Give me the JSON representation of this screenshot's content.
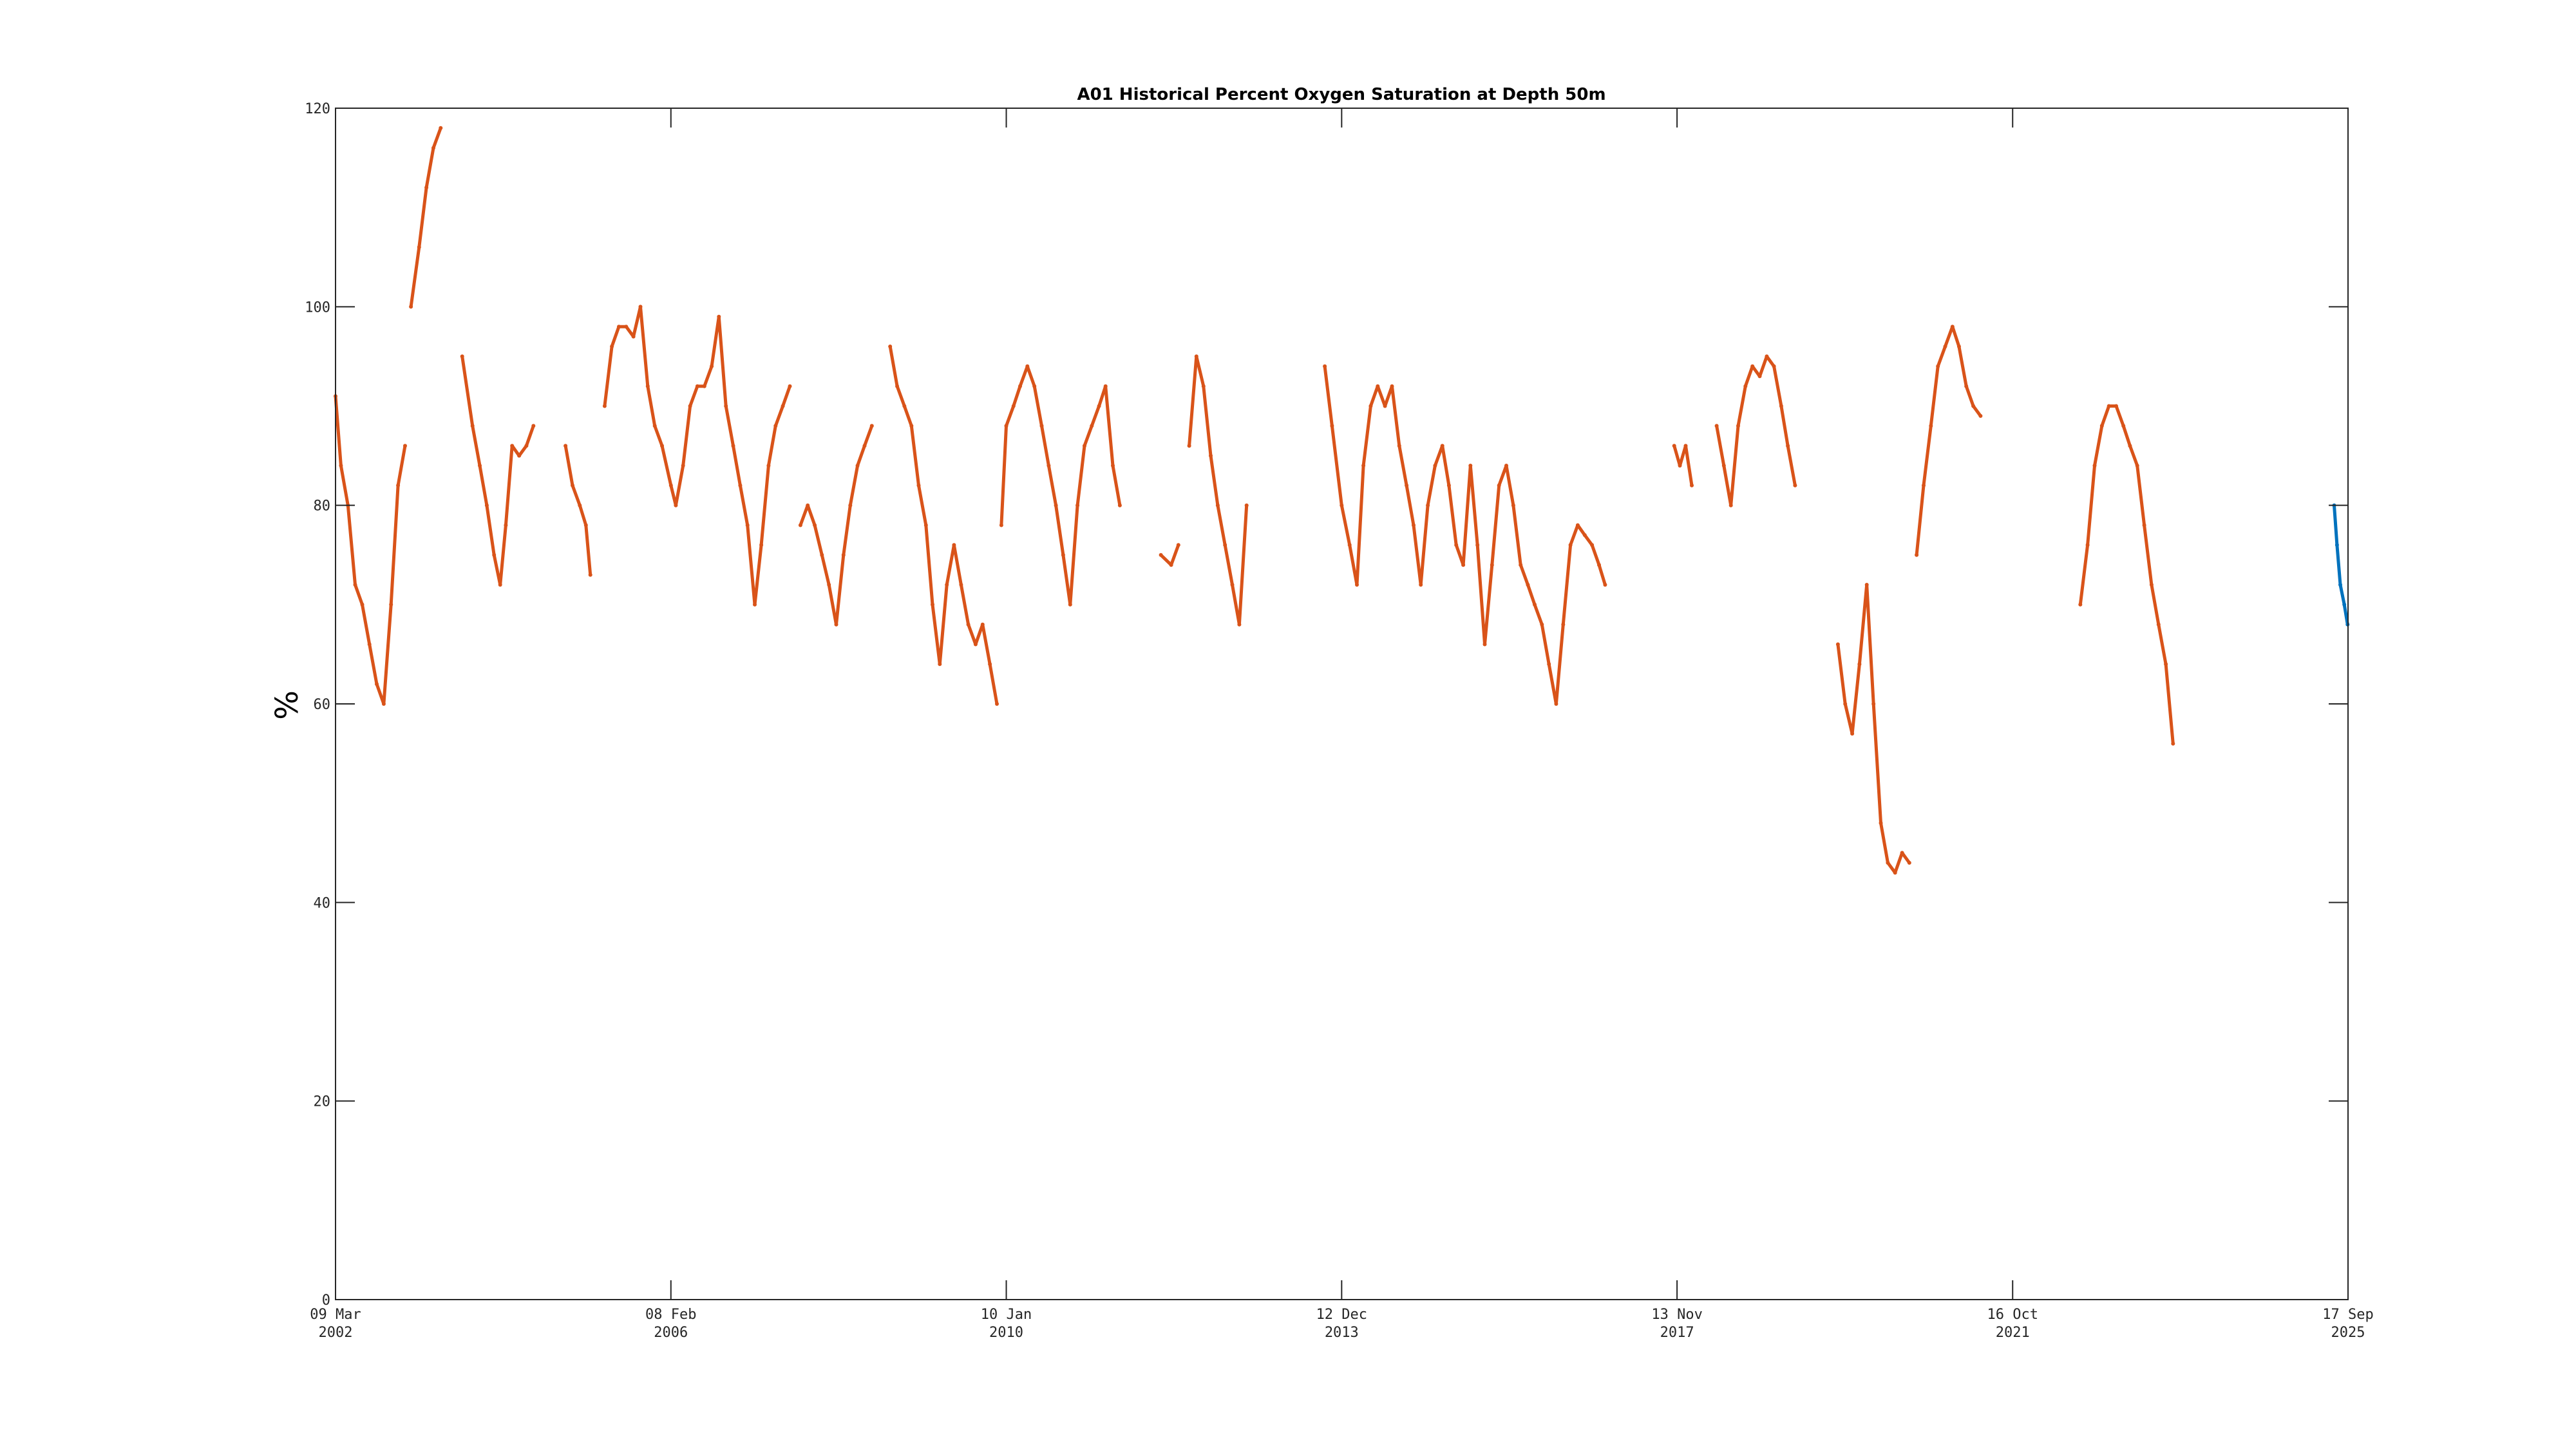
{
  "chart_data": {
    "type": "line",
    "title": "A01 Historical Percent Oxygen Saturation at Depth 50m",
    "xlabel": "",
    "ylabel": "%",
    "ylim": [
      0,
      120
    ],
    "xlim": [
      "2002-03-09",
      "2025-09-17"
    ],
    "yticks": [
      0,
      20,
      40,
      60,
      80,
      100,
      120
    ],
    "xticks": [
      {
        "date": "2002-03-09",
        "line1": "09 Mar",
        "line2": "2002"
      },
      {
        "date": "2006-02-08",
        "line1": "08 Feb",
        "line2": "2006"
      },
      {
        "date": "2010-01-10",
        "line1": "10 Jan",
        "line2": "2010"
      },
      {
        "date": "2013-12-12",
        "line1": "12 Dec",
        "line2": "2013"
      },
      {
        "date": "2017-11-13",
        "line1": "13 Nov",
        "line2": "2017"
      },
      {
        "date": "2021-10-16",
        "line1": "16 Oct",
        "line2": "2021"
      },
      {
        "date": "2025-09-17",
        "line1": "17 Sep",
        "line2": "2025"
      }
    ],
    "grid": false,
    "colors": {
      "historical": "#D95319",
      "recent": "#0072BD"
    },
    "series": [
      {
        "color": "historical",
        "segments": [
          [
            [
              "2002-03-09",
              91
            ],
            [
              "2002-04-01",
              84
            ],
            [
              "2002-05-01",
              80
            ],
            [
              "2002-06-01",
              72
            ],
            [
              "2002-07-01",
              70
            ],
            [
              "2002-08-01",
              66
            ],
            [
              "2002-09-01",
              62
            ],
            [
              "2002-10-01",
              60
            ],
            [
              "2002-11-01",
              70
            ],
            [
              "2002-12-01",
              82
            ],
            [
              "2002-12-31",
              86
            ]
          ],
          [
            [
              "2003-01-25",
              100
            ],
            [
              "2003-03-01",
              106
            ],
            [
              "2003-04-01",
              112
            ],
            [
              "2003-05-01",
              116
            ],
            [
              "2003-06-01",
              118
            ]
          ],
          [
            [
              "2003-09-01",
              95
            ],
            [
              "2003-10-15",
              88
            ],
            [
              "2003-11-15",
              84
            ],
            [
              "2003-12-15",
              80
            ],
            [
              "2004-01-15",
              75
            ],
            [
              "2004-02-10",
              72
            ],
            [
              "2004-03-05",
              78
            ],
            [
              "2004-04-01",
              86
            ],
            [
              "2004-05-01",
              85
            ],
            [
              "2004-06-01",
              86
            ],
            [
              "2004-07-01",
              88
            ]
          ],
          [
            [
              "2004-11-15",
              86
            ],
            [
              "2004-12-15",
              82
            ],
            [
              "2005-01-15",
              80
            ],
            [
              "2005-02-10",
              78
            ],
            [
              "2005-03-01",
              73
            ]
          ],
          [
            [
              "2005-05-01",
              90
            ],
            [
              "2005-06-01",
              96
            ],
            [
              "2005-07-01",
              98
            ],
            [
              "2005-08-01",
              98
            ],
            [
              "2005-09-01",
              97
            ],
            [
              "2005-10-01",
              100
            ],
            [
              "2005-11-01",
              92
            ],
            [
              "2005-12-01",
              88
            ],
            [
              "2006-01-01",
              86
            ],
            [
              "2006-02-08",
              82
            ],
            [
              "2006-03-01",
              80
            ],
            [
              "2006-04-01",
              84
            ],
            [
              "2006-05-01",
              90
            ],
            [
              "2006-06-01",
              92
            ],
            [
              "2006-07-01",
              92
            ],
            [
              "2006-08-01",
              94
            ],
            [
              "2006-09-01",
              99
            ],
            [
              "2006-10-01",
              90
            ],
            [
              "2006-11-01",
              86
            ],
            [
              "2006-12-01",
              82
            ],
            [
              "2007-01-01",
              78
            ],
            [
              "2007-02-01",
              70
            ],
            [
              "2007-03-01",
              76
            ],
            [
              "2007-04-01",
              84
            ],
            [
              "2007-05-01",
              88
            ],
            [
              "2007-06-01",
              90
            ],
            [
              "2007-07-01",
              92
            ]
          ],
          [
            [
              "2007-08-15",
              78
            ],
            [
              "2007-09-15",
              80
            ],
            [
              "2007-10-15",
              78
            ],
            [
              "2007-11-15",
              75
            ],
            [
              "2007-12-15",
              72
            ],
            [
              "2008-01-15",
              68
            ],
            [
              "2008-02-15",
              75
            ],
            [
              "2008-03-15",
              80
            ],
            [
              "2008-04-15",
              84
            ],
            [
              "2008-05-15",
              86
            ],
            [
              "2008-06-15",
              88
            ]
          ],
          [
            [
              "2008-09-01",
              96
            ],
            [
              "2008-10-01",
              92
            ],
            [
              "2008-11-01",
              90
            ],
            [
              "2008-12-01",
              88
            ],
            [
              "2009-01-01",
              82
            ],
            [
              "2009-02-01",
              78
            ],
            [
              "2009-03-01",
              70
            ],
            [
              "2009-04-01",
              64
            ],
            [
              "2009-05-01",
              72
            ],
            [
              "2009-06-01",
              76
            ],
            [
              "2009-07-01",
              72
            ],
            [
              "2009-08-01",
              68
            ],
            [
              "2009-09-01",
              66
            ],
            [
              "2009-10-01",
              68
            ],
            [
              "2009-11-01",
              64
            ],
            [
              "2009-12-01",
              60
            ]
          ],
          [
            [
              "2009-12-20",
              78
            ],
            [
              "2010-01-10",
              88
            ],
            [
              "2010-02-10",
              90
            ],
            [
              "2010-03-10",
              92
            ],
            [
              "2010-04-10",
              94
            ],
            [
              "2010-05-10",
              92
            ],
            [
              "2010-06-10",
              88
            ],
            [
              "2010-07-10",
              84
            ],
            [
              "2010-08-10",
              80
            ],
            [
              "2010-09-10",
              75
            ],
            [
              "2010-10-10",
              70
            ],
            [
              "2010-11-10",
              80
            ],
            [
              "2010-12-10",
              86
            ],
            [
              "2011-01-10",
              88
            ],
            [
              "2011-02-10",
              90
            ],
            [
              "2011-03-10",
              92
            ],
            [
              "2011-04-10",
              84
            ],
            [
              "2011-05-10",
              80
            ]
          ],
          [
            [
              "2011-11-01",
              75
            ],
            [
              "2011-12-15",
              74
            ],
            [
              "2012-01-15",
              76
            ]
          ],
          [
            [
              "2012-03-01",
              86
            ],
            [
              "2012-04-01",
              95
            ],
            [
              "2012-05-01",
              92
            ],
            [
              "2012-06-01",
              85
            ],
            [
              "2012-07-01",
              80
            ],
            [
              "2012-08-01",
              76
            ],
            [
              "2012-09-01",
              72
            ],
            [
              "2012-10-01",
              68
            ],
            [
              "2012-11-01",
              80
            ]
          ],
          [
            [
              "2013-10-01",
              94
            ],
            [
              "2013-11-01",
              88
            ],
            [
              "2013-12-12",
              80
            ],
            [
              "2014-01-15",
              76
            ],
            [
              "2014-02-15",
              72
            ],
            [
              "2014-03-15",
              84
            ],
            [
              "2014-04-15",
              90
            ],
            [
              "2014-05-15",
              92
            ],
            [
              "2014-06-15",
              90
            ],
            [
              "2014-07-15",
              92
            ],
            [
              "2014-08-15",
              86
            ],
            [
              "2014-09-15",
              82
            ],
            [
              "2014-10-15",
              78
            ],
            [
              "2014-11-15",
              72
            ],
            [
              "2014-12-15",
              80
            ],
            [
              "2015-01-15",
              84
            ],
            [
              "2015-02-15",
              86
            ],
            [
              "2015-03-15",
              82
            ],
            [
              "2015-04-15",
              76
            ],
            [
              "2015-05-15",
              74
            ],
            [
              "2015-06-15",
              84
            ],
            [
              "2015-07-15",
              76
            ],
            [
              "2015-08-15",
              66
            ],
            [
              "2015-09-15",
              74
            ],
            [
              "2015-10-15",
              82
            ],
            [
              "2015-11-15",
              84
            ],
            [
              "2015-12-15",
              80
            ],
            [
              "2016-01-15",
              74
            ],
            [
              "2016-02-15",
              72
            ],
            [
              "2016-03-15",
              70
            ],
            [
              "2016-04-15",
              68
            ],
            [
              "2016-05-15",
              64
            ],
            [
              "2016-06-15",
              60
            ],
            [
              "2016-07-15",
              68
            ],
            [
              "2016-08-15",
              76
            ],
            [
              "2016-09-15",
              78
            ],
            [
              "2016-10-15",
              77
            ],
            [
              "2016-11-15",
              76
            ],
            [
              "2016-12-15",
              74
            ],
            [
              "2017-01-10",
              72
            ]
          ],
          [
            [
              "2017-11-01",
              86
            ],
            [
              "2017-11-25",
              84
            ],
            [
              "2017-12-20",
              86
            ],
            [
              "2018-01-15",
              82
            ]
          ],
          [
            [
              "2018-05-01",
              88
            ],
            [
              "2018-06-01",
              84
            ],
            [
              "2018-07-01",
              80
            ],
            [
              "2018-08-01",
              88
            ],
            [
              "2018-09-01",
              92
            ],
            [
              "2018-10-01",
              94
            ],
            [
              "2018-11-01",
              93
            ],
            [
              "2018-12-01",
              95
            ],
            [
              "2019-01-01",
              94
            ],
            [
              "2019-02-01",
              90
            ],
            [
              "2019-03-01",
              86
            ],
            [
              "2019-04-01",
              82
            ]
          ],
          [
            [
              "2019-10-01",
              66
            ],
            [
              "2019-11-01",
              60
            ],
            [
              "2019-12-01",
              57
            ],
            [
              "2020-01-01",
              64
            ],
            [
              "2020-02-01",
              72
            ],
            [
              "2020-03-01",
              60
            ],
            [
              "2020-04-01",
              48
            ],
            [
              "2020-05-01",
              44
            ],
            [
              "2020-06-01",
              43
            ],
            [
              "2020-07-01",
              45
            ],
            [
              "2020-08-01",
              44
            ]
          ],
          [
            [
              "2020-09-01",
              75
            ],
            [
              "2020-10-01",
              82
            ],
            [
              "2020-11-01",
              88
            ],
            [
              "2020-12-01",
              94
            ],
            [
              "2021-01-01",
              96
            ],
            [
              "2021-02-01",
              98
            ],
            [
              "2021-03-01",
              96
            ],
            [
              "2021-04-01",
              92
            ],
            [
              "2021-05-01",
              90
            ],
            [
              "2021-06-01",
              89
            ]
          ],
          [
            [
              "2022-08-01",
              70
            ],
            [
              "2022-09-01",
              76
            ],
            [
              "2022-10-01",
              84
            ],
            [
              "2022-11-01",
              88
            ],
            [
              "2022-12-01",
              90
            ],
            [
              "2023-01-01",
              90
            ],
            [
              "2023-02-01",
              88
            ],
            [
              "2023-03-01",
              86
            ],
            [
              "2023-04-01",
              84
            ],
            [
              "2023-05-01",
              78
            ],
            [
              "2023-06-01",
              72
            ],
            [
              "2023-07-01",
              68
            ],
            [
              "2023-08-01",
              64
            ],
            [
              "2023-09-01",
              56
            ]
          ]
        ]
      },
      {
        "color": "recent",
        "segments": [
          [
            [
              "2025-07-20",
              80
            ],
            [
              "2025-08-01",
              76
            ],
            [
              "2025-08-15",
              72
            ],
            [
              "2025-09-01",
              70
            ],
            [
              "2025-09-15",
              68
            ]
          ]
        ]
      }
    ]
  }
}
